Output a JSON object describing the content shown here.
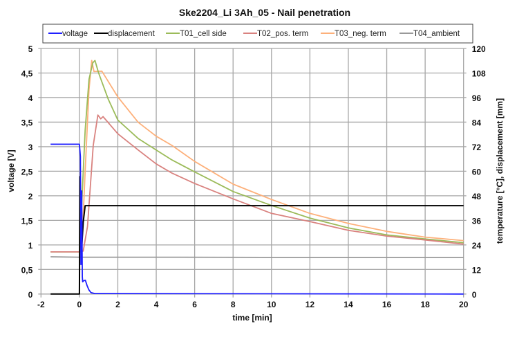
{
  "chart_data": {
    "type": "line",
    "title": "Ske2204_Li 3Ah_05 - Nail penetration",
    "xlabel": "time [min]",
    "ylabel": "voltage [V]",
    "y2label": "temperature [°C], displacement [mm]",
    "xlim": [
      -2,
      20
    ],
    "ylim": [
      0,
      5
    ],
    "y2lim": [
      0,
      120
    ],
    "xticks": [
      -2,
      0,
      2,
      4,
      6,
      8,
      10,
      12,
      14,
      16,
      18,
      20
    ],
    "yticks": [
      "0",
      "0,5",
      "1",
      "1,5",
      "2",
      "2,5",
      "3",
      "3,5",
      "4",
      "4,5",
      "5"
    ],
    "y2ticks": [
      "0",
      "12",
      "24",
      "36",
      "48",
      "60",
      "72",
      "84",
      "96",
      "108",
      "120"
    ],
    "grid": true,
    "legend_position": "top",
    "series": [
      {
        "name": "voltage",
        "axis": "left",
        "color": "#1f1fff",
        "x": [
          -1.5,
          0,
          0.05,
          0.08,
          0.12,
          0.15,
          0.17,
          0.22,
          0.31,
          0.4,
          0.5,
          0.6,
          0.8,
          1.3,
          20
        ],
        "y": [
          3.05,
          3.05,
          2.8,
          0.6,
          2.1,
          0.35,
          0.25,
          0.27,
          0.28,
          0.17,
          0.08,
          0.03,
          0.01,
          0.01,
          0
        ]
      },
      {
        "name": "displacement",
        "axis": "right",
        "color": "#000000",
        "x": [
          -1.5,
          0,
          0.03,
          0.07,
          0.1,
          0.2,
          0.3,
          20
        ],
        "y": [
          0,
          0,
          57.4,
          30,
          19.6,
          35,
          43.2,
          43.2
        ]
      },
      {
        "name": "T01_cell side",
        "axis": "right",
        "color": "#9bbb59",
        "x": [
          -1.5,
          0,
          0.1,
          0.3,
          0.5,
          0.7,
          0.81,
          1.0,
          1.5,
          2.0,
          3.06,
          4.0,
          4.82,
          6,
          8,
          10,
          12,
          14,
          16,
          18,
          20
        ],
        "y": [
          20.6,
          20.6,
          40,
          80,
          105,
          113,
          114.1,
          108,
          95.2,
          85,
          76,
          70.4,
          65.5,
          59.7,
          50.1,
          43.3,
          37.1,
          32.3,
          28.9,
          26.9,
          25.1
        ]
      },
      {
        "name": "T02_pos. term",
        "axis": "right",
        "color": "#d9827f",
        "x": [
          -1.5,
          0,
          0.2,
          0.42,
          0.72,
          0.96,
          1.11,
          1.23,
          2.0,
          3.06,
          4.0,
          4.82,
          6,
          8,
          10,
          12,
          14,
          16,
          18,
          20
        ],
        "y": [
          20.6,
          20.6,
          21,
          33,
          72.6,
          87.5,
          85.6,
          86.7,
          78.3,
          70.4,
          63.6,
          59.1,
          54.0,
          46.5,
          39.4,
          35.4,
          31.1,
          28.3,
          26.4,
          24.4
        ]
      },
      {
        "name": "T03_neg. term",
        "axis": "right",
        "color": "#fdb07a",
        "x": [
          -1.5,
          0,
          0.12,
          0.3,
          0.5,
          0.64,
          0.76,
          1.17,
          2.0,
          3.06,
          4.0,
          4.82,
          6,
          8,
          10,
          12,
          14,
          16,
          18,
          20
        ],
        "y": [
          20.6,
          20.6,
          21,
          60,
          100,
          114.1,
          108.7,
          108.9,
          96.3,
          83.9,
          77.1,
          72.6,
          64.8,
          53.7,
          46.2,
          39.4,
          34.5,
          30.6,
          27.8,
          26.1
        ]
      },
      {
        "name": "T04_ambient",
        "axis": "right",
        "color": "#999999",
        "x": [
          -1.5,
          0,
          5,
          10,
          15,
          20
        ],
        "y": [
          18.2,
          18.0,
          18.0,
          17.9,
          17.9,
          17.9
        ]
      }
    ]
  }
}
